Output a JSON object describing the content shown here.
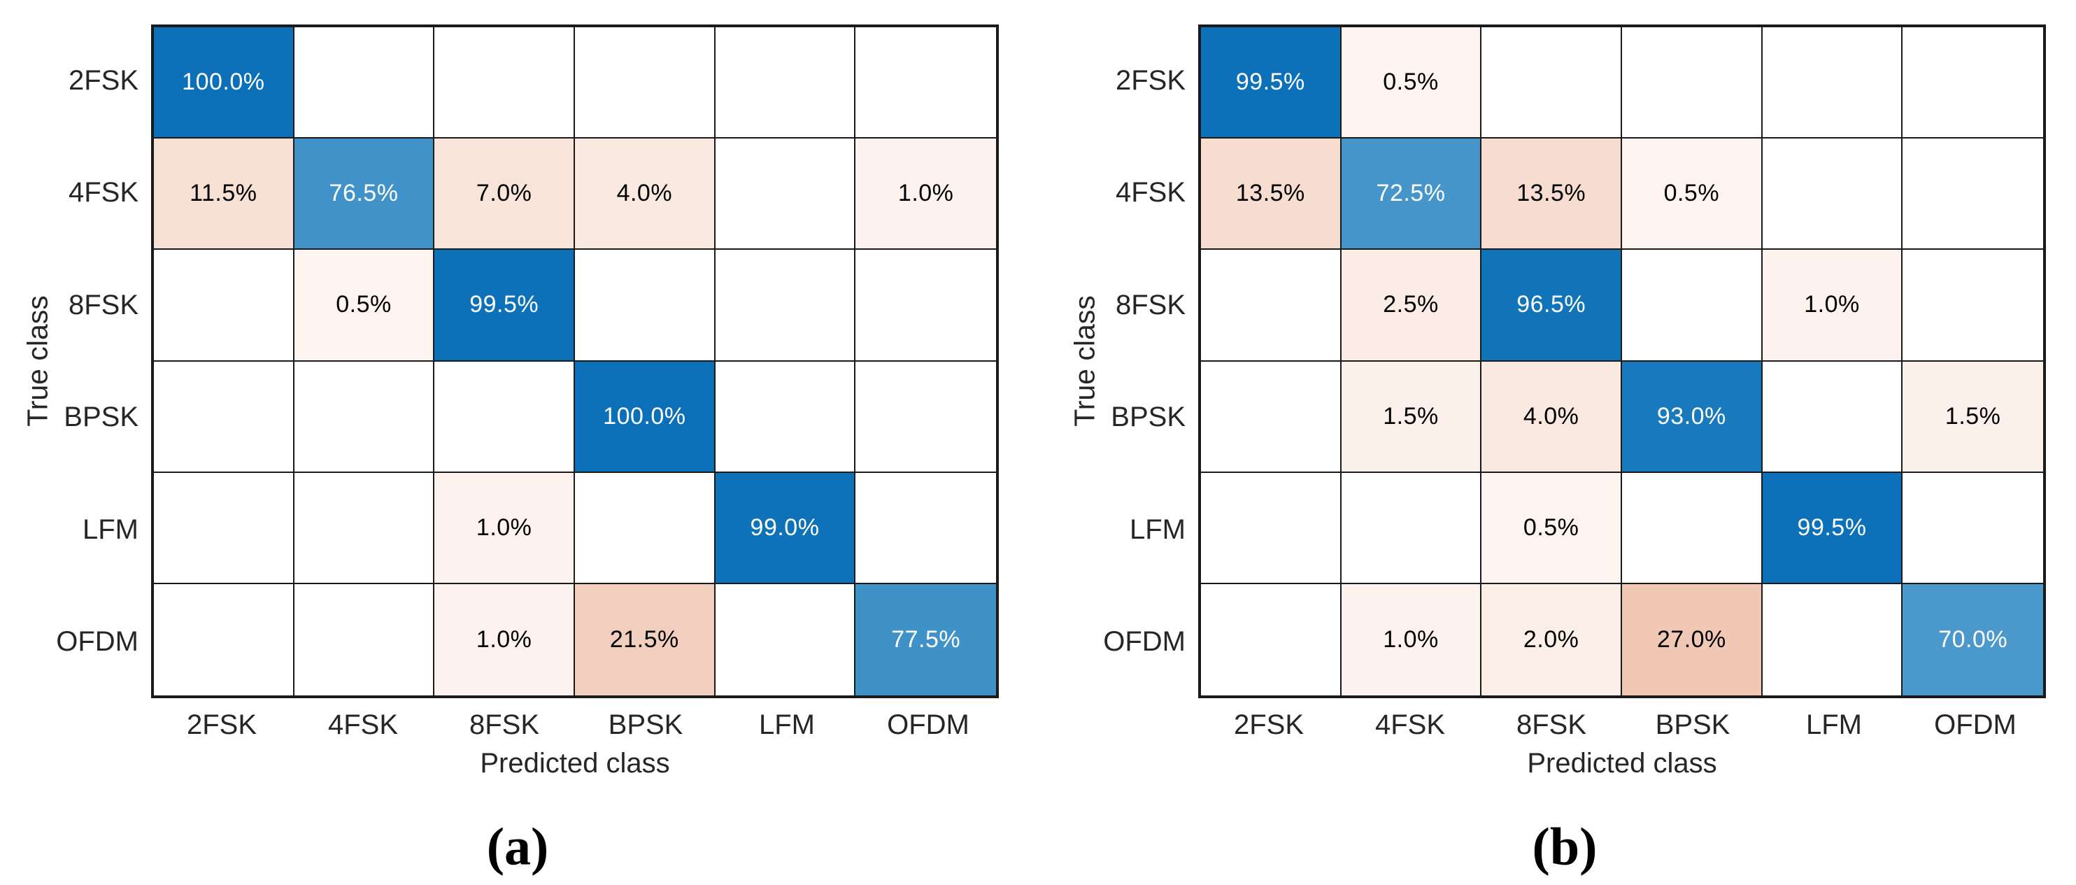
{
  "figure": {
    "description": "Two confusion matrix heatmaps side by side",
    "background": "#ffffff"
  },
  "colormap": {
    "zero_color": "#ffffff",
    "diagonal_text": "#ffffff",
    "offdiagonal_text": "#000000",
    "grid_line_color": "#1a1a1a",
    "diagonal_stops": [
      [
        0,
        "#ffffff"
      ],
      [
        70,
        "#4a98cc"
      ],
      [
        72.5,
        "#4595ca"
      ],
      [
        76.5,
        "#4092c8"
      ],
      [
        77.5,
        "#3f92c8"
      ],
      [
        93,
        "#1879bd"
      ],
      [
        96.5,
        "#1174b9"
      ],
      [
        99,
        "#0d72b8"
      ],
      [
        100,
        "#0b70b7"
      ]
    ],
    "offdiagonal_stops": [
      [
        0,
        "#ffffff"
      ],
      [
        0.5,
        "#fdf4f0"
      ],
      [
        1.0,
        "#fdf2ed"
      ],
      [
        1.5,
        "#fcf0ea"
      ],
      [
        2.0,
        "#fbefe7"
      ],
      [
        2.5,
        "#fbede5"
      ],
      [
        4.0,
        "#f9e9e0"
      ],
      [
        7.0,
        "#f8e4d9"
      ],
      [
        11.5,
        "#f7e1d5"
      ],
      [
        13.5,
        "#f6ddd0"
      ],
      [
        21.5,
        "#f1cebe"
      ],
      [
        27.0,
        "#f0c8b4"
      ]
    ]
  },
  "chart_data": [
    {
      "type": "heatmap",
      "subtype": "confusion-matrix",
      "caption": "(a)",
      "xlabel": "Predicted class",
      "ylabel": "True class",
      "unit": "%",
      "value_format": "one-decimal-percent",
      "classes": [
        "2FSK",
        "4FSK",
        "8FSK",
        "BPSK",
        "LFM",
        "OFDM"
      ],
      "rows": [
        [
          100.0,
          0,
          0,
          0,
          0,
          0
        ],
        [
          11.5,
          76.5,
          7.0,
          4.0,
          0,
          1.0
        ],
        [
          0,
          0.5,
          99.5,
          0,
          0,
          0
        ],
        [
          0,
          0,
          0,
          100.0,
          0,
          0
        ],
        [
          0,
          0,
          1.0,
          0,
          99.0,
          0
        ],
        [
          0,
          0,
          1.0,
          21.5,
          0,
          77.5
        ]
      ]
    },
    {
      "type": "heatmap",
      "subtype": "confusion-matrix",
      "caption": "(b)",
      "xlabel": "Predicted class",
      "ylabel": "True class",
      "unit": "%",
      "value_format": "one-decimal-percent",
      "classes": [
        "2FSK",
        "4FSK",
        "8FSK",
        "BPSK",
        "LFM",
        "OFDM"
      ],
      "rows": [
        [
          99.5,
          0.5,
          0,
          0,
          0,
          0
        ],
        [
          13.5,
          72.5,
          13.5,
          0.5,
          0,
          0
        ],
        [
          0,
          2.5,
          96.5,
          0,
          1.0,
          0
        ],
        [
          0,
          1.5,
          4.0,
          93.0,
          0,
          1.5
        ],
        [
          0,
          0,
          0.5,
          0,
          99.5,
          0
        ],
        [
          0,
          1.0,
          2.0,
          27.0,
          0,
          70.0
        ]
      ]
    }
  ]
}
